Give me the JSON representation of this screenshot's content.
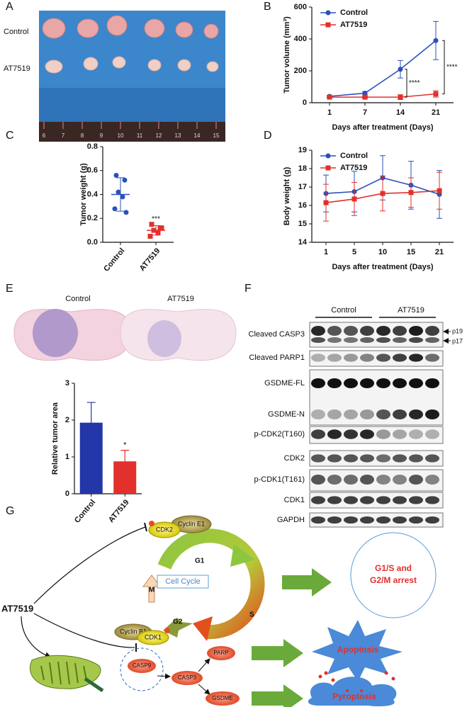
{
  "panel_labels": [
    "A",
    "B",
    "C",
    "D",
    "E",
    "F",
    "G"
  ],
  "photo": {
    "rows": [
      "Control",
      "AT7519"
    ],
    "ruler": [
      "6",
      "7",
      "8",
      "9",
      "10",
      "11",
      "12",
      "13",
      "14",
      "15"
    ]
  },
  "chart_data": [
    {
      "type": "line",
      "ylabel": "Tumor volume (mm³)",
      "xlabel": "Days after treatment (Days)",
      "categories": [
        "1",
        "7",
        "14",
        "21"
      ],
      "ylim": [
        0,
        600
      ],
      "yticks": [
        0,
        200,
        400,
        600
      ],
      "legend": "upper left",
      "series": [
        {
          "name": "Control",
          "color": "#2b50b8",
          "marker": "circle",
          "values": [
            40,
            60,
            210,
            390
          ],
          "errors": [
            5,
            10,
            55,
            120
          ]
        },
        {
          "name": "AT7519",
          "color": "#e2302d",
          "marker": "square",
          "values": [
            35,
            35,
            35,
            55
          ],
          "errors": [
            5,
            5,
            15,
            20
          ]
        }
      ],
      "annotations": [
        "****",
        "****"
      ]
    },
    {
      "type": "strip",
      "ylabel": "Tumor weight (g)",
      "categories": [
        "Control",
        "AT7519"
      ],
      "colors": [
        "#2b50b8",
        "#e2302d"
      ],
      "markers": [
        "circle",
        "square"
      ],
      "points": [
        [
          0.56,
          0.52,
          0.42,
          0.38,
          0.28,
          0.25
        ],
        [
          0.15,
          0.12,
          0.1,
          0.08,
          0.05,
          0.12
        ]
      ],
      "means": [
        0.4,
        0.1
      ],
      "sd": [
        0.14,
        0.04
      ],
      "ylim": [
        0,
        0.8
      ],
      "yticks": [
        {
          "value": 0,
          "label": "0.0"
        },
        0.2,
        0.4,
        0.6,
        0.8
      ],
      "annotation": "***"
    },
    {
      "type": "line",
      "ylabel": "Body weight (g)",
      "xlabel": "Days after treatment (Days)",
      "categories": [
        "1",
        "5",
        "10",
        "15",
        "21"
      ],
      "ylim": [
        14,
        19
      ],
      "yticks": [
        14,
        15,
        16,
        17,
        18,
        19
      ],
      "legend": "upper left",
      "series": [
        {
          "name": "Control",
          "color": "#2b50b8",
          "marker": "circle",
          "values": [
            16.65,
            16.75,
            17.5,
            17.1,
            16.6
          ],
          "errors": [
            1.0,
            1.1,
            1.2,
            1.3,
            1.3
          ]
        },
        {
          "name": "AT7519",
          "color": "#e2302d",
          "marker": "square",
          "values": [
            16.15,
            16.35,
            16.65,
            16.7,
            16.8
          ],
          "errors": [
            1.0,
            0.9,
            0.95,
            0.8,
            1.0
          ]
        }
      ]
    },
    {
      "type": "bar",
      "ylabel": "Relative tumor area",
      "categories": [
        "Control",
        "AT7519"
      ],
      "values": [
        1.93,
        0.88
      ],
      "errors": [
        0.55,
        0.3
      ],
      "colors": [
        "#2437a8",
        "#e2302d"
      ],
      "ylim": [
        0,
        3
      ],
      "yticks": [
        0,
        1,
        2,
        3
      ],
      "annotation": "*"
    }
  ],
  "histology": {
    "labels": [
      "Control",
      "AT7519"
    ]
  },
  "blot": {
    "groups": [
      "Control",
      "AT7519"
    ],
    "bands": [
      "Cleaved CASP3",
      "Cleaved PARP1",
      "GSDME-FL",
      "GSDME-N",
      "p-CDK2(T160)",
      "CDK2",
      "p-CDK1(T161)",
      "CDK1",
      "GAPDH"
    ],
    "markers": [
      "p19",
      "p17"
    ]
  },
  "diagram": {
    "drug": "AT7519",
    "cdk2": "CDK2",
    "cyclin_e1": "Cyclin E1",
    "cell_cycle": "Cell Cycle",
    "phases": [
      "G1",
      "S",
      "G2",
      "M"
    ],
    "cyclin_b1": "Cyclin B1",
    "cdk1": "CDK1",
    "arrest": [
      "G1/S and",
      "G2/M arrest"
    ],
    "casp9": "CASP9",
    "casp3": "CASP3",
    "parp": "PARP",
    "gsdme": "GSDME",
    "apoptosis": "Apoptosis",
    "pyroptosis": "Pyroptosis"
  }
}
